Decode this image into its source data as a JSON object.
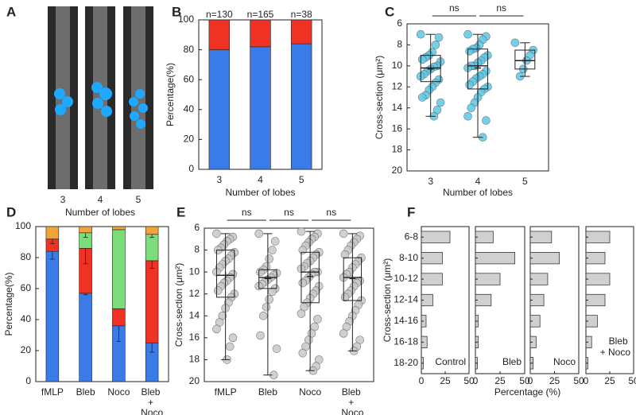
{
  "chart_data": [
    {
      "type": "image",
      "panel": "A",
      "categories": [
        "3",
        "4",
        "5"
      ],
      "xlabel": "Number of lobes"
    },
    {
      "type": "stacked-bar",
      "panel": "B",
      "categories": [
        "3",
        "4",
        "5"
      ],
      "series": [
        {
          "color": "#3a7be8",
          "values": [
            80,
            82,
            84
          ]
        },
        {
          "color": "#f03224",
          "values": [
            20,
            18,
            16
          ]
        }
      ],
      "annotations": [
        "n=130",
        "n=165",
        "n=38"
      ],
      "ylim": [
        0,
        100
      ],
      "yticks": [
        0,
        20,
        40,
        60,
        80,
        100
      ],
      "ylabel": "Percentage(%)",
      "xlabel": "Number of lobes"
    },
    {
      "type": "box",
      "panel": "C",
      "categories": [
        "3",
        "4",
        "5"
      ],
      "color": "#5bc8e8",
      "boxes": [
        {
          "min": 7,
          "q1": 9,
          "median": 10.2,
          "q3": 11.5,
          "max": 14.8,
          "mean": 10.3,
          "points": [
            7,
            7.3,
            8,
            8.7,
            9,
            9.2,
            9.4,
            9.6,
            10,
            10.1,
            10.3,
            10.5,
            10.8,
            11,
            11.3,
            11.6,
            12,
            12.3,
            12.8,
            13,
            13.5,
            14.2,
            14.8
          ]
        },
        {
          "min": 7,
          "q1": 8.4,
          "median": 10,
          "q3": 12.2,
          "max": 16.8,
          "mean": 10.2,
          "points": [
            7,
            7.2,
            7.5,
            8,
            8.3,
            8.4,
            8.6,
            9,
            9.2,
            9.5,
            9.7,
            10,
            10,
            10.2,
            10.5,
            10.8,
            11,
            11.2,
            11.5,
            11.8,
            12,
            12.2,
            12.5,
            13,
            13.5,
            14,
            14.8,
            15.2,
            16.8
          ]
        },
        {
          "min": 7.8,
          "q1": 8.5,
          "median": 9.5,
          "q3": 10.3,
          "max": 11,
          "mean": 9.5,
          "points": [
            7.8,
            8.5,
            9,
            9.5,
            10.3,
            11
          ]
        }
      ],
      "annotations": [
        "ns",
        "ns"
      ],
      "ylim": [
        20,
        6
      ],
      "yticks": [
        6,
        8,
        10,
        12,
        14,
        16,
        18,
        20
      ],
      "ylabel": "Cross-section (μm²)",
      "xlabel": "Number of lobes"
    },
    {
      "type": "stacked-bar",
      "panel": "D",
      "categories": [
        "fMLP",
        "Bleb",
        "Noco",
        "Bleb + Noco"
      ],
      "series": [
        {
          "color": "#3a7be8",
          "values": [
            84,
            57,
            36,
            25
          ],
          "errors": [
            5,
            1,
            10,
            6
          ]
        },
        {
          "color": "#f03224",
          "values": [
            8,
            29,
            11,
            53
          ],
          "errors": [
            3,
            10,
            null,
            5
          ]
        },
        {
          "color": "#7ddc7a",
          "values": [
            0,
            10,
            51,
            17
          ],
          "errors": [
            null,
            3,
            null,
            2
          ]
        },
        {
          "color": "#f2a33a",
          "values": [
            8,
            4,
            2,
            5
          ]
        }
      ],
      "ylim": [
        0,
        100
      ],
      "yticks": [
        0,
        20,
        40,
        60,
        80,
        100
      ],
      "ylabel": "Percentage(%)"
    },
    {
      "type": "box",
      "panel": "E",
      "categories": [
        "fMLP",
        "Bleb",
        "Noco",
        "Bleb + Noco"
      ],
      "color": "#c8c8c8",
      "boxes": [
        {
          "min": 6.5,
          "q1": 8,
          "median": 10.3,
          "q3": 12.3,
          "max": 18,
          "mean": 10.3,
          "points": [
            6.5,
            6.8,
            7,
            7.2,
            7.5,
            7.8,
            8,
            8.2,
            8.5,
            8.8,
            9,
            9.3,
            9.6,
            10,
            10.2,
            10.5,
            10.8,
            11,
            11.3,
            11.7,
            12,
            12.3,
            12.8,
            13.3,
            14,
            14.6,
            15.2,
            16,
            16.8,
            18
          ]
        },
        {
          "min": 6.5,
          "q1": 9.8,
          "median": 10.5,
          "q3": 11.5,
          "max": 19.4,
          "mean": 10.6,
          "points": [
            6.5,
            7.2,
            8,
            8.8,
            9.5,
            9.8,
            10,
            10.1,
            10.3,
            10.5,
            10.7,
            10.9,
            11.1,
            11.3,
            11.5,
            11.8,
            12.5,
            13.2,
            14,
            15.8,
            17,
            19.4
          ]
        },
        {
          "min": 6.3,
          "q1": 8.2,
          "median": 10,
          "q3": 12.8,
          "max": 19,
          "mean": 10.4,
          "points": [
            6.3,
            6.5,
            6.8,
            7,
            7.3,
            7.6,
            8,
            8.2,
            8.4,
            8.7,
            9,
            9.2,
            9.5,
            9.7,
            10,
            10,
            10.2,
            10.5,
            10.8,
            11,
            11.3,
            11.7,
            12,
            12.4,
            12.8,
            13.2,
            13.8,
            14.3,
            15,
            15.6,
            16.2,
            16.8,
            17.4,
            18,
            18.6,
            19
          ]
        },
        {
          "min": 6.5,
          "q1": 8.7,
          "median": 10.5,
          "q3": 12.6,
          "max": 17.2,
          "mean": 10.6,
          "points": [
            6.5,
            6.7,
            7,
            7.3,
            7.6,
            8,
            8.4,
            8.7,
            9,
            9.3,
            9.6,
            10,
            10.2,
            10.5,
            10.8,
            11,
            11.3,
            11.7,
            12,
            12.3,
            12.6,
            13,
            13.5,
            14,
            14.5,
            15,
            15.6,
            16.2,
            16.8,
            17.2
          ]
        }
      ],
      "annotations": [
        "ns",
        "ns",
        "ns"
      ],
      "ylim": [
        20,
        6
      ],
      "yticks": [
        6,
        8,
        10,
        12,
        14,
        16,
        18,
        20
      ],
      "ylabel": "Cross-section (μm²)"
    },
    {
      "type": "hbar-multiples",
      "panel": "F",
      "color": "#d0d0d0",
      "categories": [
        "6-8",
        "8-10",
        "10-12",
        "12-14",
        "14-16",
        "16-18",
        "18-20"
      ],
      "panels": [
        {
          "label": "Control",
          "values": [
            30,
            22,
            22,
            12,
            5,
            6,
            2
          ]
        },
        {
          "label": "Bleb",
          "values": [
            18,
            40,
            25,
            16,
            3,
            3,
            2
          ]
        },
        {
          "label": "Noco",
          "values": [
            22,
            30,
            18,
            14,
            10,
            6,
            3
          ]
        },
        {
          "label": "Bleb + Noco",
          "values": [
            25,
            20,
            25,
            20,
            12,
            6,
            2
          ]
        }
      ],
      "xlim": [
        0,
        50
      ],
      "xticks": [
        0,
        25,
        50
      ],
      "xlabel": "Percentage (%)",
      "ylabel": "Cross-section (μm²)"
    }
  ]
}
